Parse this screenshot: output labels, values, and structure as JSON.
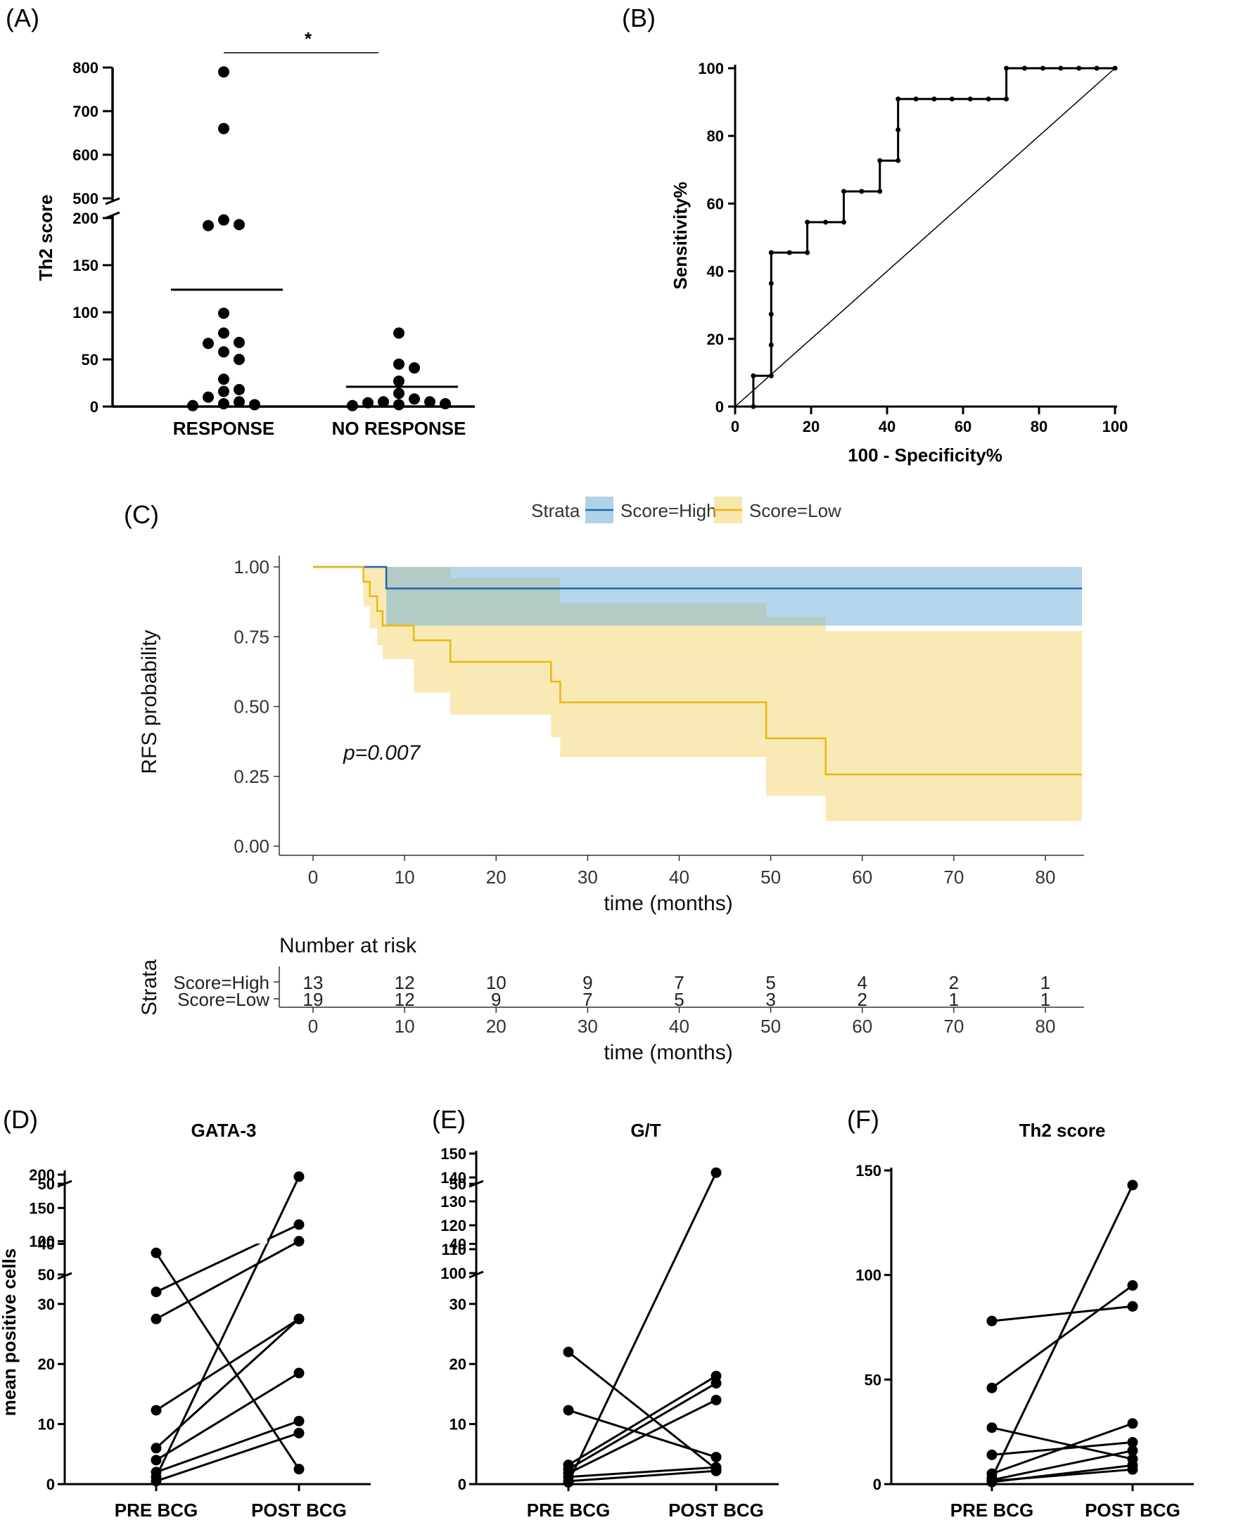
{
  "panels": {
    "A": {
      "letter": "(A)"
    },
    "B": {
      "letter": "(B)"
    },
    "C": {
      "letter": "(C)"
    },
    "D": {
      "letter": "(D)"
    },
    "E": {
      "letter": "(E)"
    },
    "F": {
      "letter": "(F)"
    }
  },
  "chart_data": [
    {
      "id": "A",
      "type": "scatter",
      "ylabel": "Th2 score",
      "categories": [
        "RESPONSE",
        "NO RESPONSE"
      ],
      "y_axis_broken": true,
      "y_break_from": 200,
      "y_break_to": 500,
      "lower_ticks": [
        0,
        50,
        100,
        150,
        200
      ],
      "upper_ticks": [
        500,
        600,
        700,
        800
      ],
      "significance": "*",
      "groups": [
        {
          "name": "RESPONSE",
          "mean": 124,
          "points": [
            790,
            660,
            198,
            193,
            192,
            99,
            78,
            68,
            67,
            58,
            50,
            29,
            18,
            16,
            10,
            5,
            3,
            2,
            1
          ]
        },
        {
          "name": "NO RESPONSE",
          "mean": 21,
          "points": [
            78,
            45,
            41,
            27,
            14,
            8,
            5,
            5,
            4,
            3,
            2,
            1
          ]
        }
      ]
    },
    {
      "id": "B",
      "type": "line",
      "title": "",
      "xlabel": "100 - Specificity%",
      "ylabel": "Sensitivity%",
      "xlim": [
        0,
        100
      ],
      "ylim": [
        0,
        100
      ],
      "xticks": [
        0,
        20,
        40,
        60,
        80,
        100
      ],
      "yticks": [
        0,
        20,
        40,
        60,
        80,
        100
      ],
      "roc_points": [
        [
          4.8,
          0
        ],
        [
          4.8,
          9.1
        ],
        [
          9.5,
          9.1
        ],
        [
          9.5,
          18.2
        ],
        [
          9.5,
          27.3
        ],
        [
          9.5,
          36.4
        ],
        [
          9.5,
          45.5
        ],
        [
          14.3,
          45.5
        ],
        [
          19,
          45.5
        ],
        [
          19,
          54.5
        ],
        [
          23.8,
          54.5
        ],
        [
          28.6,
          54.5
        ],
        [
          28.6,
          63.6
        ],
        [
          33.3,
          63.6
        ],
        [
          38.1,
          63.6
        ],
        [
          38.1,
          72.7
        ],
        [
          42.9,
          72.7
        ],
        [
          42.9,
          81.8
        ],
        [
          42.9,
          90.9
        ],
        [
          47.6,
          90.9
        ],
        [
          52.4,
          90.9
        ],
        [
          57.1,
          90.9
        ],
        [
          61.9,
          90.9
        ],
        [
          66.7,
          90.9
        ],
        [
          71.4,
          90.9
        ],
        [
          71.4,
          100
        ],
        [
          76.2,
          100
        ],
        [
          81,
          100
        ],
        [
          85.7,
          100
        ],
        [
          90.5,
          100
        ],
        [
          95.2,
          100
        ],
        [
          100,
          100
        ]
      ]
    },
    {
      "id": "C",
      "type": "line",
      "subtype": "kaplan-meier",
      "xlabel": "time (months)",
      "ylabel": "RFS probability",
      "xlim": [
        -4,
        84
      ],
      "ylim": [
        0,
        1
      ],
      "xticks": [
        0,
        10,
        20,
        30,
        40,
        50,
        60,
        70,
        80
      ],
      "yticks": [
        "0.00",
        "0.25",
        "0.50",
        "0.75",
        "1.00"
      ],
      "legend_title": "Strata",
      "annotation": "p=0.007",
      "series": [
        {
          "name": "Score=High",
          "color": "#2166ac",
          "band_color": "#6baed6",
          "steps": [
            [
              0,
              1
            ],
            [
              8,
              1
            ],
            [
              8,
              0.923
            ],
            [
              84,
              0.923
            ]
          ],
          "upper": [
            [
              8,
              1
            ],
            [
              84,
              1
            ]
          ],
          "lower": [
            [
              8,
              0.79
            ],
            [
              27,
              0.79
            ],
            [
              27,
              0.79
            ],
            [
              84,
              0.79
            ]
          ]
        },
        {
          "name": "Score=Low",
          "color": "#e8b90f",
          "band_color": "#f3d36c",
          "steps": [
            [
              0,
              1
            ],
            [
              5.5,
              1
            ],
            [
              5.5,
              0.947
            ],
            [
              6.2,
              0.947
            ],
            [
              6.2,
              0.895
            ],
            [
              7,
              0.895
            ],
            [
              7,
              0.842
            ],
            [
              7.6,
              0.842
            ],
            [
              7.6,
              0.79
            ],
            [
              11,
              0.79
            ],
            [
              11,
              0.737
            ],
            [
              15,
              0.737
            ],
            [
              15,
              0.66
            ],
            [
              26,
              0.66
            ],
            [
              26,
              0.589
            ],
            [
              27,
              0.589
            ],
            [
              27,
              0.515
            ],
            [
              49.5,
              0.515
            ],
            [
              49.5,
              0.386
            ],
            [
              56,
              0.386
            ],
            [
              56,
              0.257
            ],
            [
              84,
              0.257
            ]
          ],
          "upper": [
            [
              5.5,
              1
            ],
            [
              15,
              1
            ],
            [
              15,
              0.96
            ],
            [
              27,
              0.96
            ],
            [
              27,
              0.87
            ],
            [
              49.5,
              0.87
            ],
            [
              49.5,
              0.82
            ],
            [
              56,
              0.82
            ],
            [
              56,
              0.77
            ],
            [
              84,
              0.77
            ]
          ],
          "lower": [
            [
              5.5,
              0.86
            ],
            [
              6.2,
              0.86
            ],
            [
              6.2,
              0.78
            ],
            [
              7,
              0.78
            ],
            [
              7,
              0.72
            ],
            [
              7.6,
              0.72
            ],
            [
              7.6,
              0.67
            ],
            [
              11,
              0.67
            ],
            [
              11,
              0.55
            ],
            [
              15,
              0.55
            ],
            [
              15,
              0.47
            ],
            [
              26,
              0.47
            ],
            [
              26,
              0.39
            ],
            [
              27,
              0.39
            ],
            [
              27,
              0.32
            ],
            [
              49.5,
              0.32
            ],
            [
              49.5,
              0.18
            ],
            [
              56,
              0.18
            ],
            [
              56,
              0.09
            ],
            [
              84,
              0.09
            ]
          ]
        }
      ],
      "risk_table": {
        "title": "Number at risk",
        "ylabel": "Strata",
        "xlabel": "time (months)",
        "times": [
          0,
          10,
          20,
          30,
          40,
          50,
          60,
          70,
          80
        ],
        "rows": [
          {
            "name": "Score=High",
            "color": "#2166ac",
            "values": [
              13,
              12,
              10,
              9,
              7,
              5,
              4,
              2,
              1
            ]
          },
          {
            "name": "Score=Low",
            "color": "#e8b90f",
            "values": [
              19,
              12,
              9,
              7,
              5,
              3,
              2,
              1,
              1
            ]
          }
        ]
      }
    },
    {
      "id": "D",
      "type": "line",
      "subtype": "paired",
      "title": "GATA-3",
      "ylabel": "mean positive cells",
      "categories": [
        "PRE BCG",
        "POST BCG"
      ],
      "y_axis_broken": true,
      "lower_ticks": [
        0,
        10,
        20,
        30,
        40,
        50
      ],
      "upper_ticks": [
        50,
        100,
        150,
        200
      ],
      "pairs": [
        [
          38.5,
          2.5
        ],
        [
          32,
          125
        ],
        [
          27.5,
          100
        ],
        [
          12.3,
          27.5
        ],
        [
          6,
          27.5
        ],
        [
          4,
          18.5
        ],
        [
          2,
          10.5
        ],
        [
          0.5,
          8.5
        ],
        [
          1.2,
          197
        ]
      ]
    },
    {
      "id": "E",
      "type": "line",
      "subtype": "paired",
      "title": "G/T",
      "categories": [
        "PRE BCG",
        "POST BCG"
      ],
      "y_axis_broken": true,
      "lower_ticks": [
        0,
        10,
        20,
        30,
        40,
        50
      ],
      "upper_ticks": [
        100,
        110,
        120,
        130,
        140,
        150
      ],
      "pairs": [
        [
          22,
          2.5
        ],
        [
          12.3,
          4.5
        ],
        [
          3.2,
          18
        ],
        [
          2.5,
          16.8
        ],
        [
          1.8,
          14
        ],
        [
          1.2,
          2.8
        ],
        [
          0.5,
          2.2
        ],
        [
          0.3,
          142
        ]
      ]
    },
    {
      "id": "F",
      "type": "line",
      "subtype": "paired",
      "title": "Th2 score",
      "categories": [
        "PRE BCG",
        "POST BCG"
      ],
      "ylim": [
        0,
        150
      ],
      "yticks": [
        0,
        50,
        100,
        150
      ],
      "pairs": [
        [
          78,
          85
        ],
        [
          46,
          95
        ],
        [
          27,
          12
        ],
        [
          14,
          20
        ],
        [
          5,
          29
        ],
        [
          3,
          143
        ],
        [
          2,
          16
        ],
        [
          1.5,
          7
        ],
        [
          1,
          9
        ]
      ]
    }
  ]
}
